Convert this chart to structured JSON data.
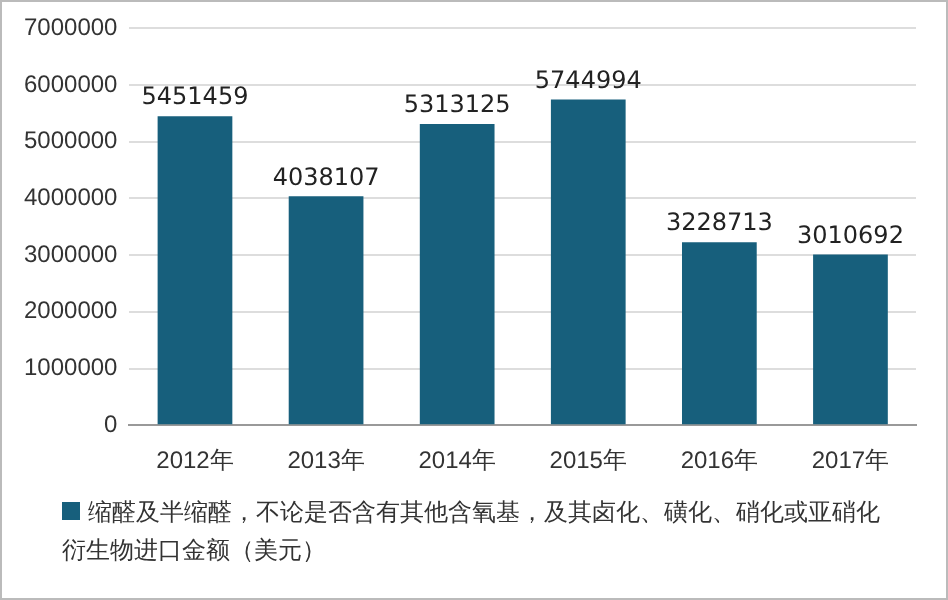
{
  "chart_data": {
    "type": "bar",
    "categories": [
      "2012年",
      "2013年",
      "2014年",
      "2015年",
      "2016年",
      "2017年"
    ],
    "series": [
      {
        "name": "缩醛及半缩醛，不论是否含有其他含氧基，及其卤化、磺化、硝化或亚硝化衍生物进口金额（美元）",
        "color": "#175f7c",
        "values": [
          5451459,
          4038107,
          5313125,
          5744994,
          3228713,
          3010692
        ]
      }
    ],
    "ylim": [
      0,
      7000000
    ],
    "yticks": [
      0,
      1000000,
      2000000,
      3000000,
      4000000,
      5000000,
      6000000,
      7000000
    ],
    "grid": "y",
    "legend": "bottom",
    "data_labels": true
  }
}
